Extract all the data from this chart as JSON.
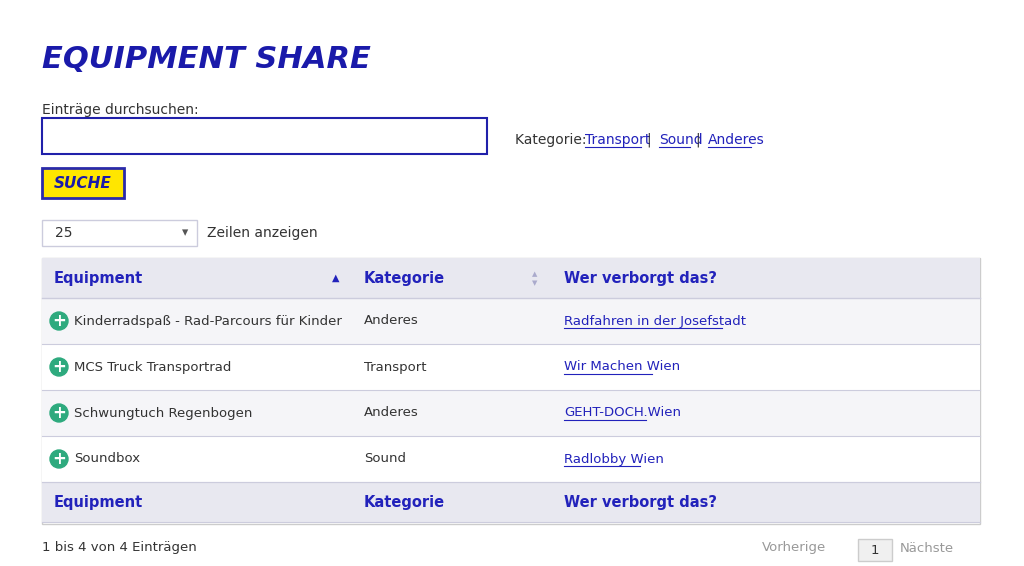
{
  "title": "EQUIPMENT SHARE",
  "title_color": "#1a1aaa",
  "bg_color": "#ffffff",
  "search_label": "Einträge durchsuchen:",
  "search_box_color": "#2020aa",
  "button_text": "SUCHE",
  "button_bg": "#FFE600",
  "button_border": "#2a2aaa",
  "button_text_color": "#1a1aaa",
  "dropdown_value": "25",
  "dropdown_label": "Zeilen anzeigen",
  "kategorie_label": "Kategorie:",
  "kategorie_links": [
    "Transport",
    "Sound",
    "Anderes"
  ],
  "link_color": "#2222bb",
  "text_color": "#333333",
  "header_color": "#2222bb",
  "col_headers": [
    "Equipment",
    "Kategorie",
    "Wer verborgt das?"
  ],
  "header_bg": "#e8e8f0",
  "row_data": [
    [
      "Kinderradspaß - Rad-Parcours für Kinder",
      "Anderes",
      "Radfahren in der Josefstadt"
    ],
    [
      "MCS Truck Transportrad",
      "Transport",
      "Wir Machen Wien"
    ],
    [
      "Schwungtuch Regenbogen",
      "Anderes",
      "GEHT-DOCH.Wien"
    ],
    [
      "Soundbox",
      "Sound",
      "Radlobby Wien"
    ]
  ],
  "row_bg_odd": "#f5f5f8",
  "row_bg_even": "#ffffff",
  "icon_color": "#2eaa7e",
  "border_color": "#ccccdd",
  "footer_text": "1 bis 4 von 4 Einträgen",
  "pagination_prev": "Vorherige",
  "pagination_page": "1",
  "pagination_next": "Nächste",
  "page_btn_bg": "#f0f0f0",
  "page_btn_border": "#cccccc",
  "outer_border_color": "#cccccc"
}
